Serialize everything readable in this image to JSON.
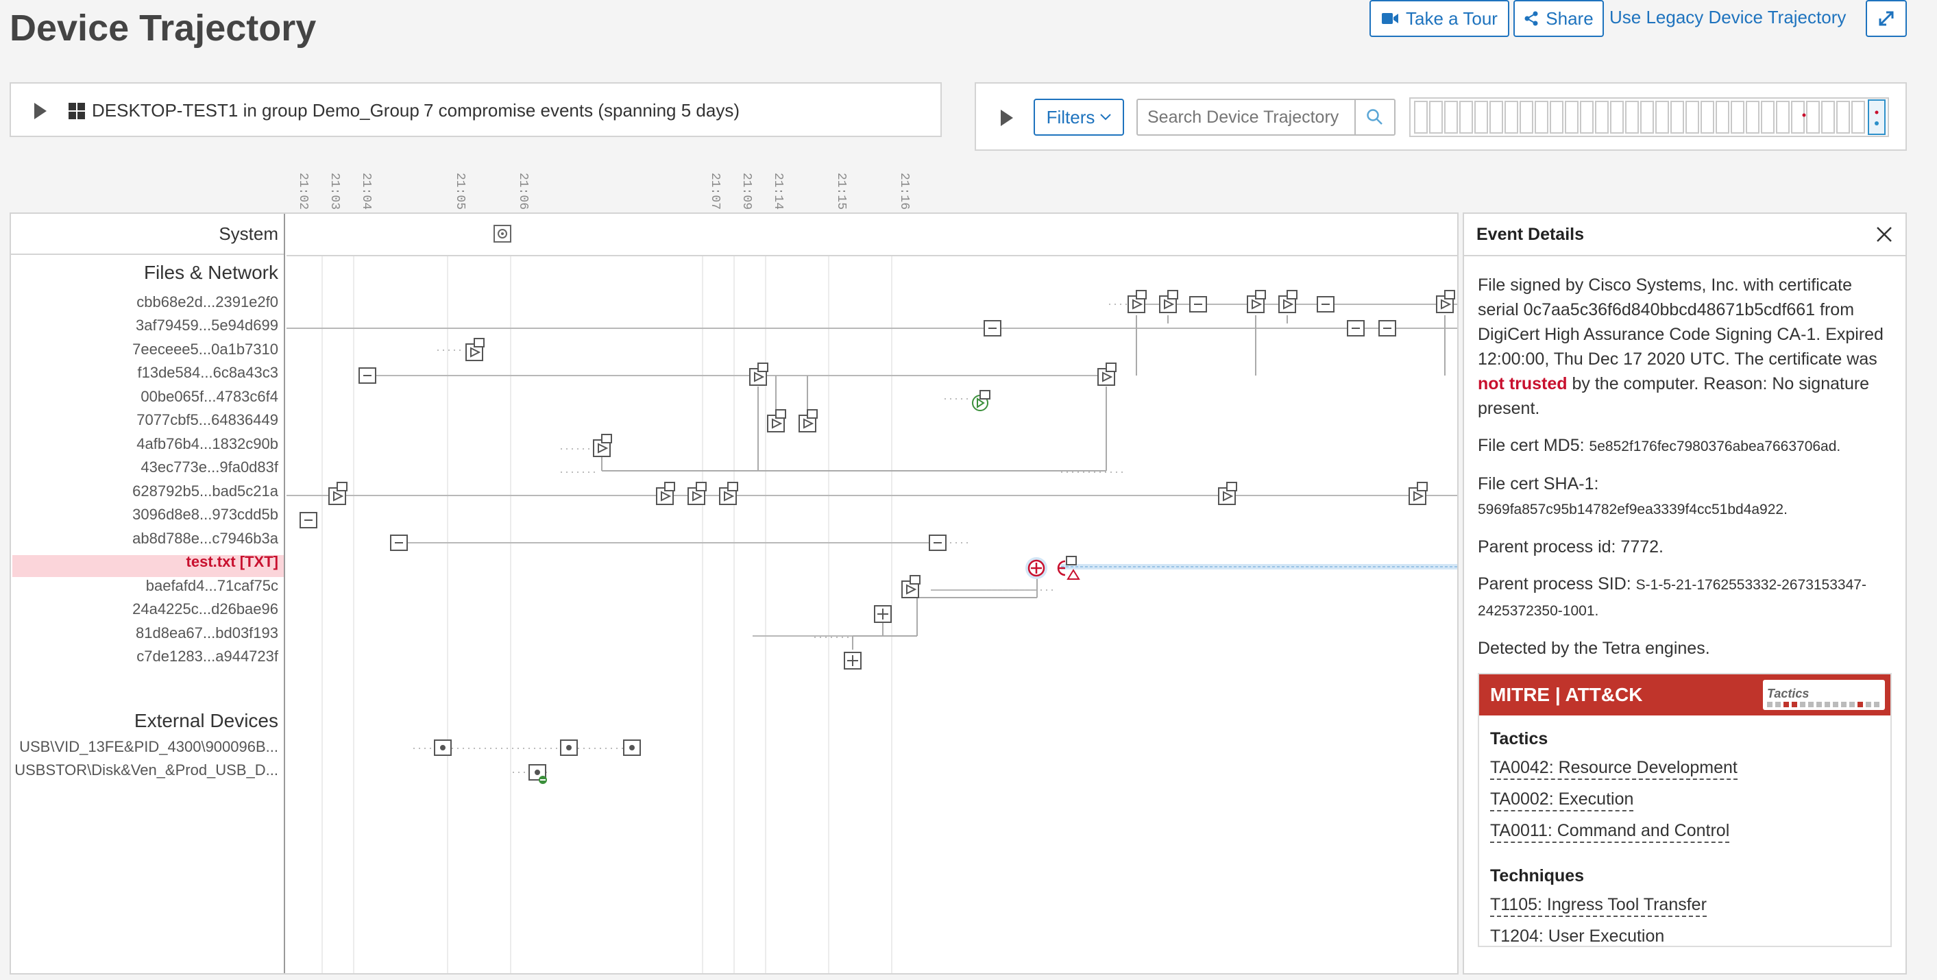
{
  "header": {
    "title": "Device Trajectory",
    "take_tour": "Take a Tour",
    "share": "Share",
    "legacy_link": "Use Legacy Device Trajectory"
  },
  "device_bar": {
    "device": "DESKTOP-TEST1 in group Demo_Group",
    "events": "7 compromise events (spanning 5 days)"
  },
  "filters": {
    "label": "Filters",
    "search_placeholder": "Search Device Trajectory"
  },
  "timeline": {
    "times": [
      "21:02",
      "21:03",
      "21:04",
      "21:05",
      "21:06",
      "21:07",
      "21:09",
      "21:14",
      "21:15",
      "21:16"
    ]
  },
  "trajectory": {
    "system_label": "System",
    "files_network_label": "Files & Network",
    "files": [
      "cbb68e2d...2391e2f0",
      "3af79459...5e94d699",
      "7eeceee5...0a1b7310",
      "f13de584...6c8a43c3",
      "00be065f...4783c6f4",
      "7077cbf5...64836449",
      "4afb76b4...1832c90b",
      "43ec773e...9fa0d83f",
      "628792b5...bad5c21a",
      "3096d8e8...973cdd5b",
      "ab8d788e...c7946b3a",
      "test.txt [TXT]",
      "baefafd4...71caf75c",
      "24a4225c...d26bae96",
      "81d8ea67...bd03f193",
      "c7de1283...a944723f"
    ],
    "external_label": "External Devices",
    "external": [
      "USB\\VID_13FE&PID_4300\\900096B...",
      "USBSTOR\\Disk&Ven_&Prod_USB_D..."
    ]
  },
  "details": {
    "title": "Event Details",
    "cert_text_1": "File signed by Cisco Systems, Inc. with certificate serial 0c7aa5c36f6d840bbcd48671b5cdf661 from DigiCert High Assurance Code Signing CA-1. Expired 12:00:00, Thu Dec 17 2020 UTC. The certificate was",
    "not_trusted": "not trusted",
    "cert_text_2": "by the computer. Reason: No signature present.",
    "md5_label": "File cert MD5:",
    "md5_value": "5e852f176fec7980376abea7663706ad.",
    "sha1_label": "File cert SHA-1:",
    "sha1_value": "5969fa857c95b14782ef9ea3339f4cc51bd4a922.",
    "parent_pid": "Parent process id: 7772.",
    "parent_sid_label": "Parent process SID:",
    "parent_sid_value": "S-1-5-21-1762553332-2673153347-2425372350-1001.",
    "detected": "Detected by the Tetra engines.",
    "mitre_brand": "MITRE | ATT&CK",
    "tactics_box": "Tactics",
    "tactics_heading": "Tactics",
    "tactics": [
      "TA0042: Resource Development",
      "TA0002: Execution",
      "TA0011: Command and Control"
    ],
    "techniques_heading": "Techniques",
    "techniques": [
      "T1105: Ingress Tool Transfer",
      "T1204: User Execution"
    ]
  },
  "colors": {
    "accent": "#1e73be",
    "danger": "#c8102e",
    "mitre": "#c0342b",
    "highlight": "#fbd5da"
  }
}
